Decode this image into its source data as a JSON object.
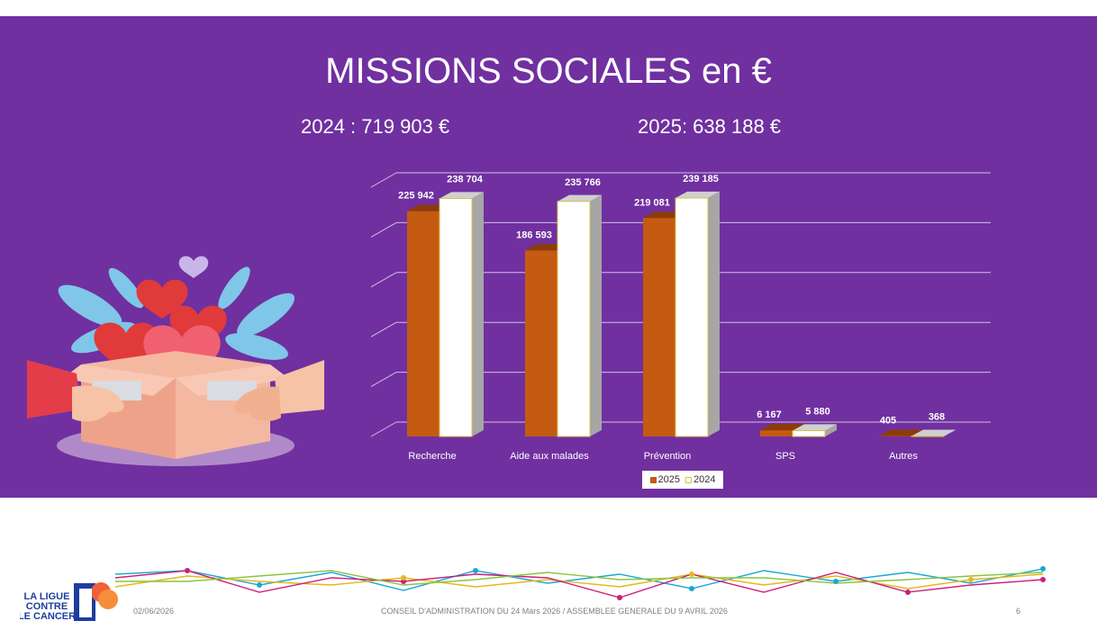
{
  "slide": {
    "title": "MISSIONS SOCIALES en €",
    "total_2024": "2024 :  719 903 €",
    "total_2025": "2025:  638 188 €"
  },
  "colors": {
    "background": "#7030a0",
    "series_2025": "#c55a11",
    "series_2024": "#ffffff"
  },
  "chart_data": {
    "type": "bar",
    "categories": [
      "Recherche",
      "Aide aux malades",
      "Prévention",
      "SPS",
      "Autres"
    ],
    "series": [
      {
        "name": "2025",
        "values": [
          225942,
          186593,
          219081,
          6167,
          405
        ],
        "labels": [
          "225 942",
          "186 593",
          "219 081",
          "6 167",
          "405"
        ]
      },
      {
        "name": "2024",
        "values": [
          238704,
          235766,
          239185,
          5880,
          368
        ],
        "labels": [
          "238 704",
          "235 766",
          "239 185",
          "5 880",
          "368"
        ]
      }
    ],
    "ylim": [
      0,
      250000
    ],
    "grid": true,
    "legend_position": "bottom"
  },
  "footer": {
    "date": "02/06/2026",
    "center": "CONSEIL D'ADMINISTRATION DU 24 Mars 2026 / ASSEMBLEE GENERALE DU 9 AVRIL 2026",
    "page": "6",
    "logo_text": "LA LIGUE CONTRE LE CANCER"
  }
}
